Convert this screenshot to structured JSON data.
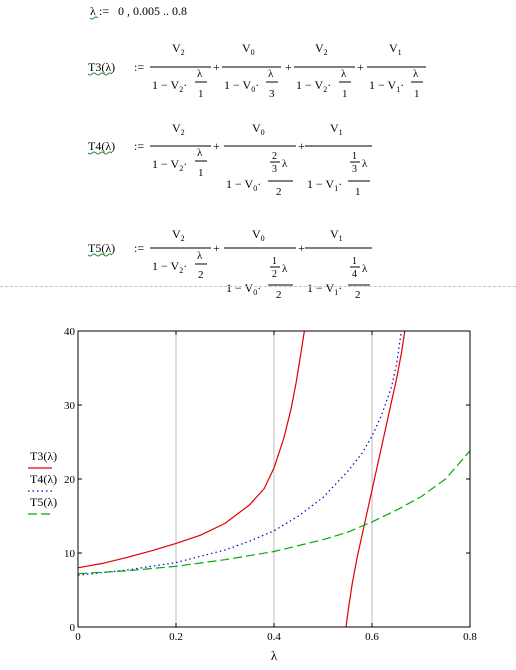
{
  "range_def": {
    "var": "λ",
    "assign": ":=",
    "expr": "0 , 0.005 .. 0.8"
  },
  "definitions": [
    {
      "name": "T3(λ)",
      "assign": ":=",
      "terms": [
        {
          "num": "V2",
          "den_prefix": "1 − V2·",
          "inner_num": "λ",
          "inner_den": "1"
        },
        {
          "num": "V0",
          "den_prefix": "1 − V0·",
          "inner_num": "λ",
          "inner_den": "3"
        },
        {
          "num": "V2",
          "den_prefix": "1 − V2·",
          "inner_num": "λ",
          "inner_den": "1"
        },
        {
          "num": "V1",
          "den_prefix": "1 − V1·",
          "inner_num": "λ",
          "inner_den": "1"
        }
      ]
    },
    {
      "name": "T4(λ)",
      "assign": ":=",
      "terms": [
        {
          "num": "V2",
          "den_prefix": "1 − V2·",
          "inner_num": "λ",
          "inner_den": "1"
        },
        {
          "num": "V0",
          "den_prefix": "1 − V0·",
          "inner_num": "2/3 λ",
          "inner_den": "2"
        },
        {
          "num": "V1",
          "den_prefix": "1 − V1·",
          "inner_num": "1/3 λ",
          "inner_den": "1"
        }
      ]
    },
    {
      "name": "T5(λ)",
      "assign": ":=",
      "terms": [
        {
          "num": "V2",
          "den_prefix": "1 − V2·",
          "inner_num": "λ",
          "inner_den": "2"
        },
        {
          "num": "V0",
          "den_prefix": "1 − V0·",
          "inner_num": "1/2 λ",
          "inner_den": "2"
        },
        {
          "num": "V1",
          "den_prefix": "1 − V1·",
          "inner_num": "1/4 λ",
          "inner_den": "2"
        }
      ]
    }
  ],
  "chart_data": {
    "type": "line",
    "xlabel": "λ",
    "xlim": [
      0,
      0.8
    ],
    "ylim": [
      0,
      40
    ],
    "x_ticks": [
      "0",
      "0.2",
      "0.4",
      "0.6",
      "0.8"
    ],
    "y_ticks": [
      "0",
      "10",
      "20",
      "30",
      "40"
    ],
    "x_grid": [
      0.2,
      0.4,
      0.6
    ],
    "grid": "vertical lines only",
    "legend": "left, outside plot",
    "series": [
      {
        "name": "T3(λ)",
        "color": "#e00000",
        "style": "solid",
        "segments": [
          {
            "x": [
              0,
              0.05,
              0.1,
              0.15,
              0.2,
              0.25,
              0.3,
              0.35,
              0.38,
              0.4,
              0.42,
              0.435,
              0.445,
              0.455,
              0.462
            ],
            "y": [
              8,
              8.6,
              9.4,
              10.3,
              11.3,
              12.4,
              14,
              16.5,
              18.7,
              21.5,
              25.5,
              29.5,
              33,
              37,
              40
            ]
          },
          {
            "x": [
              0.547,
              0.553,
              0.56,
              0.57,
              0.58,
              0.59,
              0.6,
              0.61,
              0.62,
              0.63,
              0.64,
              0.65,
              0.66,
              0.667
            ],
            "y": [
              0,
              3,
              6,
              9.5,
              12.5,
              15.5,
              18.5,
              21.5,
              24.5,
              27.5,
              30.5,
              33.5,
              37,
              40
            ]
          }
        ]
      },
      {
        "name": "T4(λ)",
        "color": "#0000cc",
        "style": "dotted",
        "segments": [
          {
            "x": [
              0,
              0.1,
              0.2,
              0.3,
              0.35,
              0.4,
              0.45,
              0.5,
              0.55,
              0.58,
              0.6,
              0.62,
              0.64,
              0.65,
              0.66
            ],
            "y": [
              7,
              7.7,
              8.7,
              10.4,
              11.6,
              13,
              15,
              17.5,
              21,
              23.5,
              25.8,
              28.7,
              32.5,
              35.5,
              40
            ]
          }
        ]
      },
      {
        "name": "T5(λ)",
        "color": "#00aa00",
        "style": "dashed",
        "segments": [
          {
            "x": [
              0,
              0.1,
              0.2,
              0.3,
              0.4,
              0.5,
              0.55,
              0.6,
              0.65,
              0.7,
              0.75,
              0.8
            ],
            "y": [
              7.2,
              7.6,
              8.2,
              9.1,
              10.2,
              11.8,
              12.8,
              14.2,
              15.8,
              17.6,
              20,
              23.8
            ]
          }
        ]
      }
    ]
  }
}
